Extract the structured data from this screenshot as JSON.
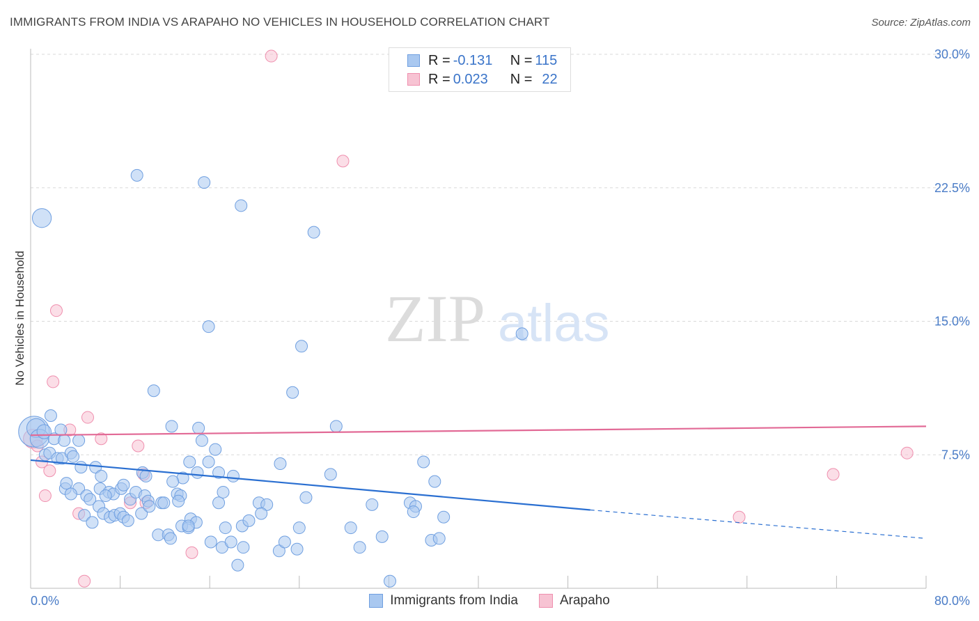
{
  "header": {
    "title": "IMMIGRANTS FROM INDIA VS ARAPAHO NO VEHICLES IN HOUSEHOLD CORRELATION CHART",
    "source": "Source: ZipAtlas.com"
  },
  "watermark": {
    "zip": "ZIP",
    "atlas": "atlas"
  },
  "legend": {
    "rows": [
      {
        "r_label": "R =",
        "r_value": "-0.131",
        "n_label": "N =",
        "n_value": "115"
      },
      {
        "r_label": "R =",
        "r_value": "0.023",
        "n_label": "N =",
        "n_value": "22"
      }
    ]
  },
  "colors": {
    "india_fill": "#a9c8f0",
    "india_stroke": "#6f9fe0",
    "india_line": "#2a6fd1",
    "arapaho_fill": "#f7c3d3",
    "arapaho_stroke": "#ef8fae",
    "arapaho_line": "#e26a96",
    "grid": "#d9d9d9",
    "tick_text": "#4a7cc7"
  },
  "chart_data": {
    "type": "scatter",
    "title": "IMMIGRANTS FROM INDIA VS ARAPAHO NO VEHICLES IN HOUSEHOLD CORRELATION CHART",
    "xlabel": "",
    "ylabel": "No Vehicles in Household",
    "xlim": [
      0,
      80
    ],
    "ylim": [
      0,
      30
    ],
    "x_tick_labels": [
      "0.0%",
      "80.0%"
    ],
    "y_ticks": [
      7.5,
      15.0,
      22.5,
      30.0
    ],
    "y_tick_labels": [
      "7.5%",
      "15.0%",
      "22.5%",
      "30.0%"
    ],
    "grid": true,
    "legend_position": "bottom",
    "series": [
      {
        "name": "Immigrants from India",
        "trend": {
          "x": [
            0,
            50
          ],
          "y": [
            7.2,
            4.4
          ],
          "dashed_to": [
            80,
            2.8
          ]
        },
        "points": [
          [
            1.0,
            20.8,
            1.6
          ],
          [
            9.5,
            23.2,
            1
          ],
          [
            15.5,
            22.8,
            1
          ],
          [
            18.8,
            21.5,
            1
          ],
          [
            25.3,
            20.0,
            1
          ],
          [
            15.9,
            14.7,
            1
          ],
          [
            24.2,
            13.6,
            1
          ],
          [
            43.9,
            14.3,
            1
          ],
          [
            11.0,
            11.1,
            1
          ],
          [
            23.4,
            11.0,
            1
          ],
          [
            0.3,
            8.8,
            2.6
          ],
          [
            0.5,
            9.0,
            1.6
          ],
          [
            0.8,
            8.4,
            1.6
          ],
          [
            1.2,
            8.8,
            1.2
          ],
          [
            1.8,
            9.7,
            1
          ],
          [
            2.1,
            8.4,
            1
          ],
          [
            2.7,
            8.9,
            1
          ],
          [
            3.0,
            8.3,
            1
          ],
          [
            4.3,
            8.3,
            1
          ],
          [
            12.6,
            9.1,
            1
          ],
          [
            15.0,
            9.0,
            1
          ],
          [
            27.3,
            9.1,
            1
          ],
          [
            15.3,
            8.3,
            1
          ],
          [
            16.5,
            7.8,
            1
          ],
          [
            1.3,
            7.5,
            1
          ],
          [
            1.7,
            7.6,
            1
          ],
          [
            2.4,
            7.3,
            1
          ],
          [
            2.8,
            7.3,
            1
          ],
          [
            3.6,
            7.6,
            1
          ],
          [
            3.8,
            7.4,
            1
          ],
          [
            4.5,
            6.8,
            1
          ],
          [
            5.8,
            6.8,
            1
          ],
          [
            6.3,
            6.3,
            1
          ],
          [
            14.2,
            7.1,
            1
          ],
          [
            15.9,
            7.1,
            1
          ],
          [
            22.3,
            7.0,
            1
          ],
          [
            35.1,
            7.1,
            1
          ],
          [
            10.0,
            6.5,
            1
          ],
          [
            10.3,
            6.3,
            1
          ],
          [
            13.6,
            6.2,
            1
          ],
          [
            14.9,
            6.5,
            1
          ],
          [
            16.8,
            6.5,
            1
          ],
          [
            18.1,
            6.3,
            1
          ],
          [
            26.8,
            6.4,
            1
          ],
          [
            36.1,
            6.0,
            1
          ],
          [
            3.1,
            5.6,
            1
          ],
          [
            3.2,
            5.9,
            1
          ],
          [
            4.3,
            5.6,
            1
          ],
          [
            5.0,
            5.2,
            1
          ],
          [
            5.3,
            5.0,
            1
          ],
          [
            6.2,
            5.6,
            1
          ],
          [
            7.0,
            5.4,
            1
          ],
          [
            7.4,
            5.3,
            1
          ],
          [
            8.1,
            5.6,
            1
          ],
          [
            8.3,
            5.8,
            1
          ],
          [
            8.9,
            5.0,
            1
          ],
          [
            9.4,
            5.4,
            1
          ],
          [
            10.2,
            5.2,
            1
          ],
          [
            10.5,
            4.9,
            1
          ],
          [
            11.7,
            4.8,
            1
          ],
          [
            11.9,
            4.8,
            1
          ],
          [
            13.1,
            5.3,
            1
          ],
          [
            13.4,
            5.2,
            1
          ],
          [
            13.2,
            4.9,
            1
          ],
          [
            16.8,
            4.8,
            1
          ],
          [
            17.2,
            5.4,
            1
          ],
          [
            20.4,
            4.8,
            1
          ],
          [
            21.1,
            4.7,
            1
          ],
          [
            24.6,
            5.1,
            1
          ],
          [
            30.5,
            4.7,
            1
          ],
          [
            33.9,
            4.8,
            1
          ],
          [
            34.4,
            4.6,
            1
          ],
          [
            4.8,
            4.1,
            1
          ],
          [
            5.5,
            3.7,
            1
          ],
          [
            6.1,
            4.6,
            1
          ],
          [
            6.5,
            4.2,
            1
          ],
          [
            7.1,
            4.0,
            1
          ],
          [
            7.5,
            4.1,
            1
          ],
          [
            8.0,
            4.2,
            1
          ],
          [
            8.3,
            4.0,
            1
          ],
          [
            8.7,
            3.8,
            1
          ],
          [
            9.9,
            4.2,
            1
          ],
          [
            13.5,
            3.5,
            1
          ],
          [
            14.3,
            3.9,
            1
          ],
          [
            14.8,
            3.7,
            1
          ],
          [
            14.1,
            3.4,
            1
          ],
          [
            18.9,
            3.5,
            1
          ],
          [
            19.5,
            3.8,
            1
          ],
          [
            20.6,
            4.2,
            1
          ],
          [
            17.4,
            3.4,
            1
          ],
          [
            24.0,
            3.4,
            1
          ],
          [
            28.6,
            3.4,
            1
          ],
          [
            34.2,
            4.3,
            1
          ],
          [
            36.9,
            4.0,
            1
          ],
          [
            11.4,
            3.0,
            1
          ],
          [
            12.3,
            3.0,
            1
          ],
          [
            12.5,
            2.8,
            1
          ],
          [
            14.1,
            3.5,
            1
          ],
          [
            16.1,
            2.6,
            1
          ],
          [
            17.1,
            2.3,
            1
          ],
          [
            17.9,
            2.6,
            1
          ],
          [
            19.0,
            2.3,
            1
          ],
          [
            22.2,
            2.1,
            1
          ],
          [
            22.7,
            2.6,
            1
          ],
          [
            23.8,
            2.2,
            1
          ],
          [
            29.4,
            2.3,
            1
          ],
          [
            31.4,
            2.9,
            1
          ],
          [
            35.8,
            2.7,
            1
          ],
          [
            36.5,
            2.8,
            1
          ],
          [
            18.5,
            1.3,
            1
          ],
          [
            32.1,
            0.4,
            1
          ],
          [
            3.6,
            5.3,
            1
          ],
          [
            6.7,
            5.2,
            1
          ],
          [
            12.7,
            6.0,
            1
          ],
          [
            10.6,
            4.6,
            1
          ]
        ]
      },
      {
        "name": "Arapaho",
        "trend": {
          "x": [
            0,
            80
          ],
          "y": [
            8.6,
            9.1
          ]
        },
        "points": [
          [
            21.5,
            29.9,
            1
          ],
          [
            27.9,
            24.0,
            1
          ],
          [
            2.3,
            15.6,
            1
          ],
          [
            2.0,
            11.6,
            1
          ],
          [
            5.1,
            9.6,
            1
          ],
          [
            3.5,
            8.9,
            1
          ],
          [
            6.3,
            8.4,
            1
          ],
          [
            9.6,
            8.0,
            1
          ],
          [
            0.2,
            8.4,
            1.6
          ],
          [
            1.0,
            7.1,
            1
          ],
          [
            1.7,
            6.6,
            1
          ],
          [
            10.1,
            6.4,
            1
          ],
          [
            1.3,
            5.2,
            1
          ],
          [
            8.9,
            4.8,
            1
          ],
          [
            10.3,
            4.8,
            1
          ],
          [
            4.3,
            4.2,
            1
          ],
          [
            14.4,
            2.0,
            1
          ],
          [
            4.8,
            0.4,
            1
          ],
          [
            78.3,
            7.6,
            1
          ],
          [
            71.7,
            6.4,
            1
          ],
          [
            63.3,
            4.0,
            1
          ],
          [
            0.6,
            8.0,
            1
          ]
        ]
      }
    ]
  }
}
